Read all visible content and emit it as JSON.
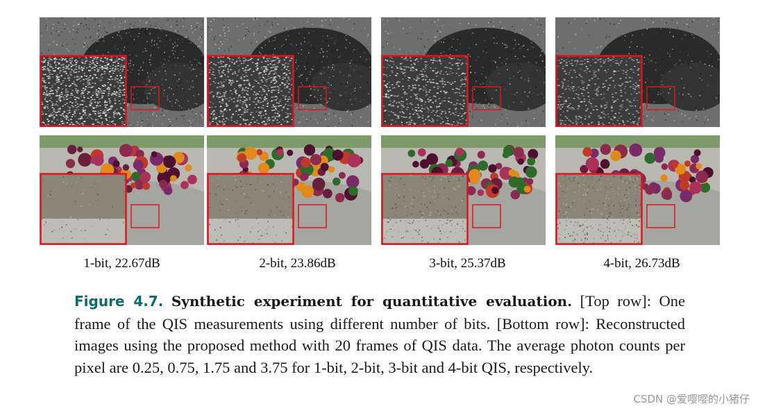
{
  "figure": {
    "panels_top": [
      {
        "name": "top-1bit",
        "noise": 1.0
      },
      {
        "name": "top-2bit",
        "noise": 0.75
      },
      {
        "name": "top-3bit",
        "noise": 0.55
      },
      {
        "name": "top-4bit",
        "noise": 0.4
      }
    ],
    "panels_bottom": [
      {
        "name": "bottom-1bit",
        "detail": 0.2
      },
      {
        "name": "bottom-2bit",
        "detail": 0.5
      },
      {
        "name": "bottom-3bit",
        "detail": 0.75
      },
      {
        "name": "bottom-4bit",
        "detail": 1.0
      }
    ],
    "labels": [
      "1-bit, 22.67dB",
      "2-bit, 23.86dB",
      "3-bit, 25.37dB",
      "4-bit, 26.73dB"
    ],
    "highlight_color": "#e0141e",
    "caption": {
      "number": "Figure 4.7.",
      "title": "Synthetic experiment for quantitative evaluation.",
      "body": "[Top row]: One frame of the QIS measurements using different number of bits. [Bottom row]: Reconstructed images using the proposed method with 20 frames of QIS data. The average photon counts per pixel are 0.25, 0.75, 1.75 and 3.75 for 1-bit, 2-bit, 3-bit and 4-bit QIS, respectively."
    }
  },
  "watermark": "CSDN @爱嘤嘤的小猪仔"
}
